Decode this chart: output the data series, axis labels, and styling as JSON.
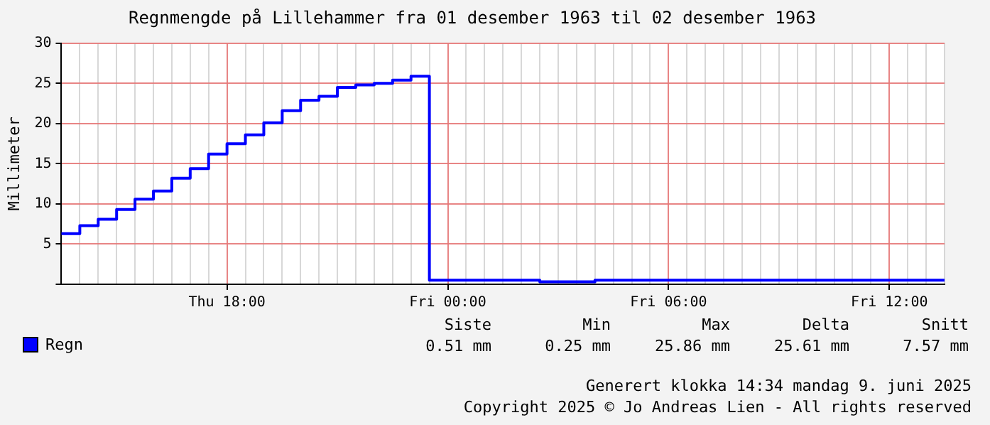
{
  "chart_data": {
    "type": "step",
    "title": "Regnmengde på Lillehammer fra 01 desember 1963 til 02 desember 1963",
    "ylabel": "Millimeter",
    "categories": [
      null,
      null,
      null,
      null,
      null,
      null,
      null,
      null,
      null,
      "Thu 18:00",
      null,
      null,
      null,
      null,
      null,
      null,
      null,
      null,
      null,
      null,
      null,
      "Fri 00:00",
      null,
      null,
      null,
      null,
      null,
      null,
      null,
      null,
      null,
      null,
      null,
      "Fri 06:00",
      null,
      null,
      null,
      null,
      null,
      null,
      null,
      null,
      null,
      null,
      null,
      "Fri 12:00",
      null,
      null,
      null
    ],
    "series": [
      {
        "name": "Regn",
        "color": "#0000ff",
        "values": [
          6.3,
          7.3,
          8.1,
          9.3,
          10.6,
          11.6,
          13.2,
          14.4,
          16.2,
          17.5,
          18.6,
          20.1,
          21.6,
          22.9,
          23.4,
          24.5,
          24.8,
          25.0,
          25.4,
          25.9,
          0.5,
          0.5,
          0.5,
          0.5,
          0.5,
          0.5,
          0.3,
          0.3,
          0.3,
          0.5,
          0.5,
          0.5,
          0.5,
          0.5,
          0.5,
          0.5,
          0.5,
          0.5,
          0.5,
          0.5,
          0.5,
          0.5,
          0.5,
          0.5,
          0.5,
          0.5,
          0.5,
          0.5,
          0.5
        ]
      }
    ],
    "ylim": [
      0,
      30
    ],
    "yticks": [
      {
        "value": 0,
        "label": null
      },
      5,
      10,
      15,
      20,
      25,
      30
    ],
    "grid": true,
    "legend": "bottom",
    "marker": "none",
    "line_style": "solid",
    "annotations": [
      "Siste",
      "Min",
      "Max",
      "Delta",
      "Snitt",
      "0.51 mm",
      "0.25 mm",
      "25.86 mm",
      "25.61 mm",
      "7.57 mm",
      "Generert klokka 14:34 mandag 9. juni 2025",
      "Copyright 2025 © Jo Andreas Lien - All rights reserved"
    ]
  }
}
